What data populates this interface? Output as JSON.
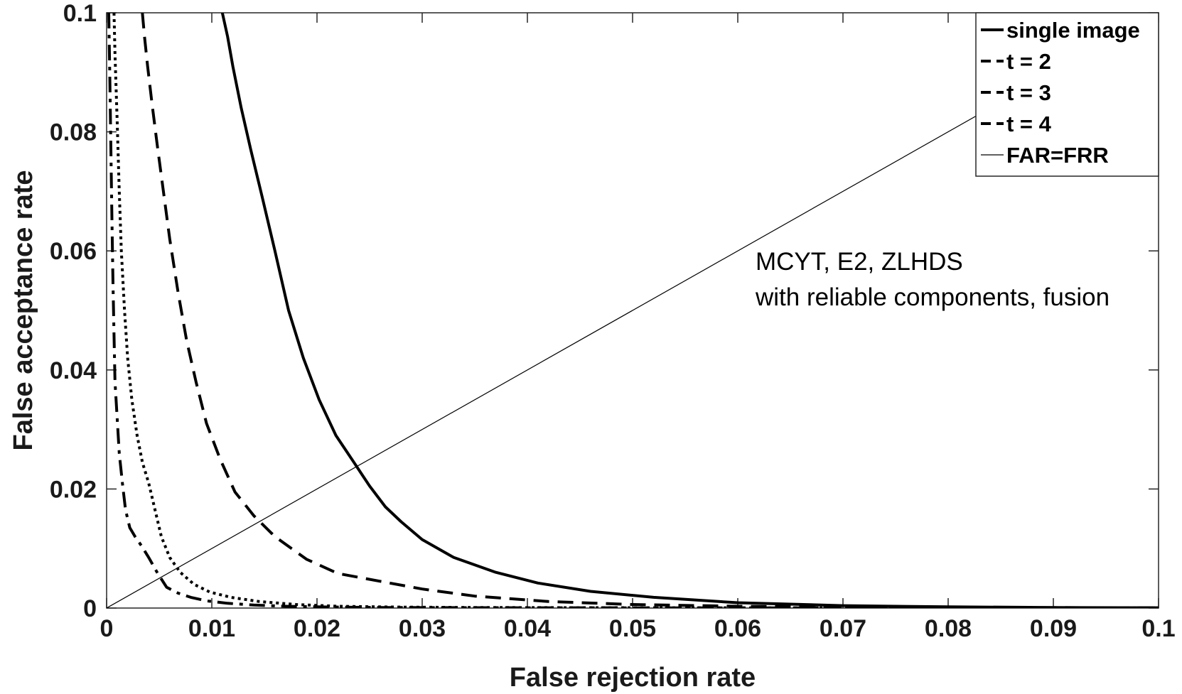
{
  "chart_data": {
    "type": "line",
    "title": "",
    "xlabel": "False rejection rate",
    "ylabel": "False acceptance rate",
    "xlim": [
      0,
      0.1
    ],
    "ylim": [
      0,
      0.1
    ],
    "xticks": [
      0,
      0.01,
      0.02,
      0.03,
      0.04,
      0.05,
      0.06,
      0.07,
      0.08,
      0.09,
      0.1
    ],
    "xtick_labels": [
      "0",
      "0.01",
      "0.02",
      "0.03",
      "0.04",
      "0.05",
      "0.06",
      "0.07",
      "0.08",
      "0.09",
      "0.1"
    ],
    "yticks": [
      0,
      0.02,
      0.04,
      0.06,
      0.08,
      0.1
    ],
    "ytick_labels": [
      "0",
      "0.02",
      "0.04",
      "0.06",
      "0.08",
      "0.1"
    ],
    "grid": false,
    "legend_position": "top-right",
    "annotation": [
      "MCYT, E2, ZLHDS",
      "with reliable components, fusion"
    ],
    "series": [
      {
        "name": "single image",
        "style": "solid",
        "color": "#000000",
        "x": [
          0.011,
          0.0115,
          0.012,
          0.0128,
          0.0137,
          0.0148,
          0.016,
          0.0173,
          0.0187,
          0.0202,
          0.0218,
          0.0235,
          0.025,
          0.0265,
          0.028,
          0.03,
          0.033,
          0.037,
          0.041,
          0.046,
          0.052,
          0.06,
          0.07,
          0.08,
          0.09,
          0.1
        ],
        "y": [
          0.1,
          0.096,
          0.091,
          0.084,
          0.077,
          0.069,
          0.06,
          0.05,
          0.042,
          0.035,
          0.029,
          0.0245,
          0.0205,
          0.017,
          0.0145,
          0.0115,
          0.0085,
          0.006,
          0.0042,
          0.0028,
          0.0018,
          0.0009,
          0.0004,
          0.0002,
          0.0001,
          5e-05
        ]
      },
      {
        "name": "t = 2",
        "style": "dashed",
        "color": "#000000",
        "x": [
          0.0034,
          0.0036,
          0.0039,
          0.0043,
          0.0048,
          0.0054,
          0.006,
          0.0068,
          0.0076,
          0.0085,
          0.0095,
          0.0108,
          0.0122,
          0.014,
          0.016,
          0.019,
          0.022,
          0.026,
          0.03,
          0.035,
          0.042,
          0.05,
          0.06,
          0.07,
          0.085,
          0.1
        ],
        "y": [
          0.1,
          0.096,
          0.091,
          0.085,
          0.078,
          0.07,
          0.062,
          0.053,
          0.045,
          0.038,
          0.031,
          0.025,
          0.0195,
          0.0155,
          0.012,
          0.0082,
          0.0058,
          0.0045,
          0.0032,
          0.002,
          0.0011,
          0.0006,
          0.0003,
          0.00015,
          8e-05,
          5e-05
        ]
      },
      {
        "name": "t = 3",
        "style": "dotted",
        "color": "#000000",
        "x": [
          0.0007,
          0.0008,
          0.001,
          0.0012,
          0.0014,
          0.0017,
          0.002,
          0.0024,
          0.0029,
          0.0034,
          0.004,
          0.0046,
          0.0052,
          0.006,
          0.007,
          0.0083,
          0.0098,
          0.0118,
          0.0145,
          0.018,
          0.022,
          0.028,
          0.035,
          0.045,
          0.06,
          0.08,
          0.1
        ],
        "y": [
          0.1,
          0.093,
          0.082,
          0.07,
          0.06,
          0.05,
          0.042,
          0.035,
          0.029,
          0.0245,
          0.021,
          0.0165,
          0.012,
          0.0085,
          0.006,
          0.004,
          0.0027,
          0.0018,
          0.0011,
          0.0006,
          0.0003,
          0.00015,
          0.0001,
          6e-05,
          4e-05,
          3e-05,
          2e-05
        ]
      },
      {
        "name": "t = 4",
        "style": "dashdot",
        "color": "#000000",
        "x": [
          0.0002,
          0.0003,
          0.0004,
          0.0005,
          0.0006,
          0.0007,
          0.0008,
          0.001,
          0.0012,
          0.0015,
          0.0018,
          0.0022,
          0.0027,
          0.0033,
          0.004,
          0.0048,
          0.0057,
          0.0068,
          0.008,
          0.0095,
          0.0115,
          0.014,
          0.017,
          0.021,
          0.026,
          0.032,
          0.04,
          0.05,
          0.065,
          0.08,
          0.1
        ],
        "y": [
          0.1,
          0.09,
          0.078,
          0.066,
          0.055,
          0.046,
          0.038,
          0.032,
          0.026,
          0.021,
          0.0165,
          0.0135,
          0.012,
          0.0105,
          0.0085,
          0.006,
          0.0035,
          0.0025,
          0.0018,
          0.0012,
          0.0008,
          0.0005,
          0.0003,
          0.00018,
          0.0001,
          7e-05,
          5e-05,
          4e-05,
          3e-05,
          2e-05,
          1e-05
        ]
      },
      {
        "name": "FAR=FRR",
        "style": "thin",
        "color": "#000000",
        "x": [
          0,
          0.1
        ],
        "y": [
          0,
          0.1
        ]
      }
    ]
  }
}
